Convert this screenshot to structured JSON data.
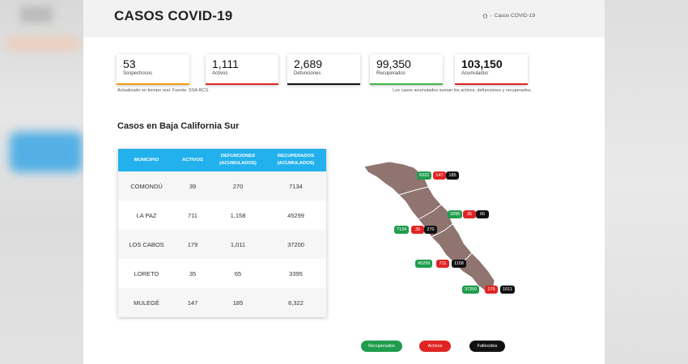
{
  "page": {
    "title": "CASOS COVID-19",
    "breadcrumb": {
      "home_icon": "home-icon",
      "current": "Casos COVID-19"
    }
  },
  "stats": [
    {
      "value": "53",
      "label": "Sospechosos",
      "color": "#f39c12"
    },
    {
      "value": "1,111",
      "label": "Activos",
      "color": "#e02424"
    },
    {
      "value": "2,689",
      "label": "Defunciones",
      "color": "#111111"
    },
    {
      "value": "99,350",
      "label": "Recuperados",
      "color": "#3fb549"
    },
    {
      "value": "103,150",
      "label": "Acumulados",
      "color": "#e02424"
    }
  ],
  "notes": {
    "left": "Actualizado en tiempo real. Fuente: SSA-BCS.",
    "right": "Los casos acumulados suman los activos, defunciones y recuperados."
  },
  "section": {
    "title": "Casos en Baja California Sur"
  },
  "table": {
    "headers": [
      "MUNICIPIO",
      "ACTIVOS",
      "DEFUNCIONES (ACUMULADOS)",
      "RECUPERADOS (ACUMULADOS)"
    ],
    "rows": [
      [
        "COMONDÚ",
        "39",
        "270",
        "7134"
      ],
      [
        "LA PAZ",
        "711",
        "1,158",
        "45299"
      ],
      [
        "LOS CABOS",
        "179",
        "1,011",
        "37200"
      ],
      [
        "LORETO",
        "35",
        "65",
        "3395"
      ],
      [
        "MULEGÉ",
        "147",
        "185",
        "6,322"
      ]
    ]
  },
  "map": {
    "mulege": {
      "recuperados": "6322",
      "activos": "147",
      "fallecidos": "185"
    },
    "loreto": {
      "recuperados": "3395",
      "activos": "35",
      "fallecidos": "65"
    },
    "comondu": {
      "recuperados": "7134",
      "activos": "39",
      "fallecidos": "270"
    },
    "la_paz": {
      "recuperados": "45299",
      "activos": "711",
      "fallecidos": "1158"
    },
    "los_cabos": {
      "recuperados": "37200",
      "activos": "179",
      "fallecidos": "1011"
    },
    "colors": {
      "recuperados": "#1f9d4d",
      "activos": "#e02424",
      "fallecidos": "#111111",
      "land": "#8f7470"
    }
  },
  "legend": {
    "recuperados": "Recuperados",
    "activos": "Activos",
    "fallecidos": "Fallecidos"
  }
}
